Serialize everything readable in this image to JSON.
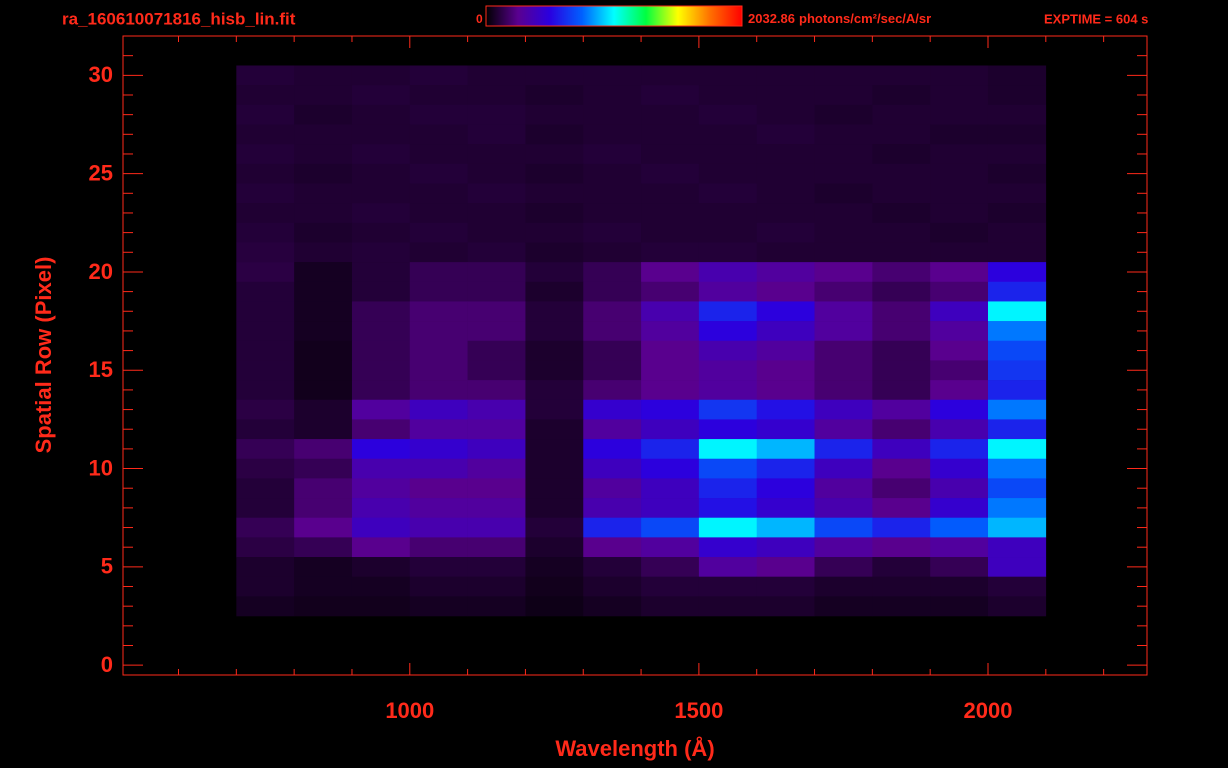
{
  "chart_data": {
    "type": "heatmap",
    "title": "ra_160610071816_hisb_lin.fit",
    "annotation": "EXPTIME = 604 s",
    "colorbar": {
      "min": 0,
      "max": 2032.86,
      "unit": "photons/cm²/sec/A/sr"
    },
    "colormap": [
      "#000000",
      "#5a0090",
      "#2a00e0",
      "#0060ff",
      "#00ffff",
      "#00ff40",
      "#ffff00",
      "#ff7000",
      "#ff0000"
    ],
    "x_label": "Wavelength (Å)",
    "y_label": "Spatial Row (Pixel)",
    "xlim": [
      504,
      2275
    ],
    "ylim": [
      -0.5,
      32
    ],
    "xticks": [
      1000,
      1500,
      2000
    ],
    "xminor_ticks": [
      600,
      700,
      800,
      900,
      1100,
      1200,
      1300,
      1400,
      1600,
      1700,
      1800,
      1900,
      2100,
      2200
    ],
    "yticks": [
      0,
      5,
      10,
      15,
      20,
      25,
      30
    ],
    "yminor_ticks": [
      1,
      2,
      3,
      4,
      6,
      7,
      8,
      9,
      11,
      12,
      13,
      14,
      16,
      17,
      18,
      19,
      21,
      22,
      23,
      24,
      26,
      27,
      28,
      29,
      31
    ],
    "x_bins": [
      700,
      800,
      900,
      1000,
      1100,
      1200,
      1300,
      1400,
      1500,
      1600,
      1700,
      1800,
      1900,
      2000,
      2100
    ],
    "rows": [
      30,
      29,
      28,
      27,
      26,
      25,
      24,
      23,
      22,
      21,
      20,
      19,
      18,
      17,
      16,
      15,
      14,
      13,
      12,
      11,
      10,
      9,
      8,
      7,
      6,
      5,
      4,
      3
    ],
    "z": [
      [
        100,
        90,
        90,
        100,
        90,
        90,
        90,
        90,
        90,
        90,
        90,
        90,
        90,
        80
      ],
      [
        90,
        90,
        100,
        90,
        90,
        80,
        90,
        100,
        90,
        90,
        90,
        80,
        90,
        80
      ],
      [
        100,
        80,
        90,
        100,
        100,
        90,
        90,
        90,
        100,
        90,
        80,
        90,
        90,
        90
      ],
      [
        90,
        90,
        90,
        90,
        100,
        80,
        90,
        90,
        90,
        100,
        90,
        90,
        80,
        80
      ],
      [
        100,
        90,
        100,
        90,
        90,
        90,
        100,
        90,
        90,
        90,
        90,
        80,
        90,
        90
      ],
      [
        90,
        80,
        90,
        100,
        90,
        80,
        90,
        100,
        90,
        90,
        90,
        90,
        90,
        80
      ],
      [
        100,
        90,
        90,
        90,
        100,
        90,
        90,
        90,
        100,
        90,
        80,
        90,
        90,
        90
      ],
      [
        90,
        90,
        100,
        90,
        90,
        80,
        90,
        90,
        90,
        90,
        90,
        80,
        90,
        80
      ],
      [
        100,
        80,
        90,
        100,
        90,
        90,
        100,
        90,
        90,
        100,
        90,
        90,
        80,
        90
      ],
      [
        110,
        90,
        100,
        90,
        100,
        80,
        90,
        100,
        100,
        90,
        90,
        90,
        90,
        90
      ],
      [
        120,
        60,
        100,
        150,
        150,
        100,
        150,
        250,
        350,
        300,
        250,
        200,
        250,
        500
      ],
      [
        100,
        60,
        100,
        150,
        150,
        80,
        150,
        200,
        300,
        250,
        200,
        150,
        200,
        600
      ],
      [
        100,
        60,
        150,
        200,
        200,
        100,
        200,
        350,
        600,
        500,
        300,
        200,
        400,
        1000
      ],
      [
        100,
        60,
        150,
        200,
        200,
        100,
        200,
        300,
        500,
        400,
        300,
        200,
        300,
        800
      ],
      [
        100,
        50,
        150,
        200,
        150,
        80,
        150,
        250,
        350,
        300,
        200,
        150,
        250,
        700
      ],
      [
        100,
        50,
        150,
        200,
        150,
        80,
        150,
        250,
        300,
        250,
        200,
        150,
        200,
        650
      ],
      [
        100,
        50,
        150,
        200,
        200,
        100,
        200,
        250,
        300,
        250,
        200,
        150,
        250,
        600
      ],
      [
        120,
        80,
        300,
        400,
        350,
        100,
        450,
        500,
        650,
        550,
        400,
        300,
        500,
        800
      ],
      [
        100,
        80,
        200,
        300,
        300,
        80,
        300,
        400,
        500,
        450,
        300,
        200,
        350,
        600
      ],
      [
        150,
        200,
        500,
        450,
        400,
        80,
        500,
        600,
        1000,
        900,
        600,
        400,
        600,
        1000
      ],
      [
        120,
        150,
        350,
        350,
        300,
        80,
        400,
        500,
        700,
        600,
        400,
        250,
        450,
        800
      ],
      [
        100,
        200,
        300,
        250,
        250,
        80,
        300,
        400,
        600,
        500,
        300,
        200,
        350,
        700
      ],
      [
        100,
        200,
        350,
        300,
        300,
        80,
        350,
        400,
        550,
        450,
        350,
        250,
        450,
        800
      ],
      [
        150,
        250,
        400,
        350,
        350,
        100,
        600,
        700,
        1000,
        900,
        700,
        600,
        750,
        900
      ],
      [
        120,
        150,
        250,
        200,
        200,
        80,
        250,
        300,
        450,
        400,
        300,
        250,
        300,
        400
      ],
      [
        80,
        60,
        80,
        100,
        100,
        60,
        100,
        150,
        300,
        250,
        150,
        100,
        150,
        400
      ],
      [
        80,
        60,
        60,
        80,
        80,
        50,
        80,
        100,
        100,
        100,
        80,
        80,
        80,
        100
      ],
      [
        60,
        50,
        50,
        60,
        60,
        40,
        60,
        80,
        80,
        80,
        60,
        60,
        60,
        80
      ]
    ]
  }
}
